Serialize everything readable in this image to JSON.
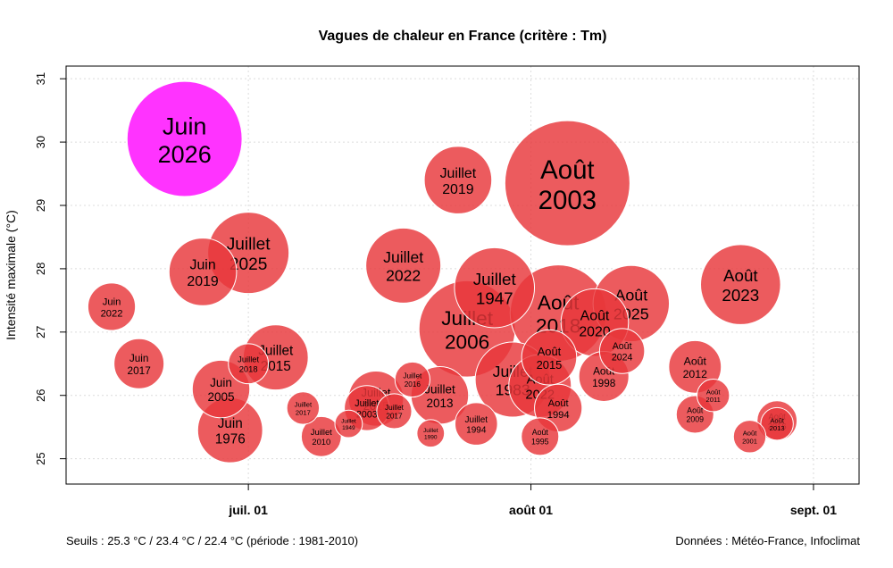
{
  "chart_data": {
    "type": "scatter",
    "title": "Vagues de chaleur en France (critère : Tm)",
    "xlabel": "",
    "ylabel": "Intensité maximale (°C)",
    "xlim": [
      "2026-06-11",
      "2026-09-06"
    ],
    "ylim": [
      24.6,
      31.2
    ],
    "x_ticks": [
      {
        "date": "2026-07-01",
        "label": "juil. 01"
      },
      {
        "date": "2026-08-01",
        "label": "août 01"
      },
      {
        "date": "2026-09-01",
        "label": "sept. 01"
      }
    ],
    "y_ticks": [
      25,
      26,
      27,
      28,
      29,
      30,
      31
    ],
    "grid": true,
    "size_meaning": "relative heat-wave severity (bubble area)",
    "colors": {
      "historical": "#e8373b",
      "current": "#ff33ff",
      "stroke": "#ffffff"
    },
    "points": [
      {
        "month": "Juin",
        "year": "2026",
        "date": "2026-06-24",
        "y": 30.05,
        "size": 4.6,
        "highlight": true
      },
      {
        "month": "Août",
        "year": "2003",
        "date": "2026-08-05",
        "y": 29.35,
        "size": 5.0
      },
      {
        "month": "Juillet",
        "year": "2019",
        "date": "2026-07-24",
        "y": 29.4,
        "size": 2.7
      },
      {
        "month": "Juillet",
        "year": "2025",
        "date": "2026-07-01",
        "y": 28.25,
        "size": 3.25
      },
      {
        "month": "Juin",
        "year": "2019",
        "date": "2026-06-26",
        "y": 27.95,
        "size": 2.7
      },
      {
        "month": "Juillet",
        "year": "2022",
        "date": "2026-07-18",
        "y": 28.05,
        "size": 3.0
      },
      {
        "month": "Juillet",
        "year": "1947",
        "date": "2026-07-28",
        "y": 27.7,
        "size": 3.2
      },
      {
        "month": "Août",
        "year": "2023",
        "date": "2026-08-24",
        "y": 27.75,
        "size": 3.2
      },
      {
        "month": "Juin",
        "year": "2022",
        "date": "2026-06-16",
        "y": 27.4,
        "size": 1.9
      },
      {
        "month": "Juillet",
        "year": "2006",
        "date": "2026-07-25",
        "y": 27.05,
        "size": 3.85
      },
      {
        "month": "Août",
        "year": "2018",
        "date": "2026-08-04",
        "y": 27.3,
        "size": 3.85
      },
      {
        "month": "Août",
        "year": "2020",
        "date": "2026-08-08",
        "y": 27.15,
        "size": 2.7
      },
      {
        "month": "Août",
        "year": "2025",
        "date": "2026-08-12",
        "y": 27.45,
        "size": 3.05
      },
      {
        "month": "Août",
        "year": "2015",
        "date": "2026-08-03",
        "y": 26.6,
        "size": 2.2
      },
      {
        "month": "Août",
        "year": "2024",
        "date": "2026-08-11",
        "y": 26.7,
        "size": 1.8
      },
      {
        "month": "Juin",
        "year": "2017",
        "date": "2026-06-19",
        "y": 26.5,
        "size": 2.0
      },
      {
        "month": "Juillet",
        "year": "2015",
        "date": "2026-07-04",
        "y": 26.6,
        "size": 2.6
      },
      {
        "month": "Juillet",
        "year": "2018",
        "date": "2026-07-01",
        "y": 26.5,
        "size": 1.6
      },
      {
        "month": "Août",
        "year": "1998",
        "date": "2026-08-09",
        "y": 26.3,
        "size": 2.0
      },
      {
        "month": "Août",
        "year": "2012",
        "date": "2026-08-19",
        "y": 26.45,
        "size": 2.1
      },
      {
        "month": "Juillet",
        "year": "1983",
        "date": "2026-07-30",
        "y": 26.25,
        "size": 3.0
      },
      {
        "month": "Août",
        "year": "2022",
        "date": "2026-08-02",
        "y": 26.15,
        "size": 2.5
      },
      {
        "month": "Juin",
        "year": "2005",
        "date": "2026-06-28",
        "y": 26.1,
        "size": 2.3
      },
      {
        "month": "Juin",
        "year": "1976",
        "date": "2026-06-29",
        "y": 25.45,
        "size": 2.6
      },
      {
        "month": "Juillet",
        "year": "2013",
        "date": "2026-07-22",
        "y": 26.0,
        "size": 2.3
      },
      {
        "month": "Juillet",
        "year": "2016",
        "date": "2026-07-19",
        "y": 26.25,
        "size": 1.4
      },
      {
        "month": "Juillet",
        "year": "2015",
        "date": "2026-07-15",
        "y": 25.95,
        "size": 2.2
      },
      {
        "month": "Juillet",
        "year": "2003",
        "date": "2026-07-14",
        "y": 25.8,
        "size": 1.8
      },
      {
        "month": "Juillet",
        "year": "2017",
        "date": "2026-07-17",
        "y": 25.75,
        "size": 1.4
      },
      {
        "month": "Juillet",
        "year": "2017",
        "date": "2026-07-07",
        "y": 25.8,
        "size": 1.3
      },
      {
        "month": "Août",
        "year": "1994",
        "date": "2026-08-04",
        "y": 25.8,
        "size": 1.9
      },
      {
        "month": "Août",
        "year": "2011",
        "date": "2026-08-21",
        "y": 26.0,
        "size": 1.3
      },
      {
        "month": "Juillet",
        "year": "1994",
        "date": "2026-07-26",
        "y": 25.55,
        "size": 1.7
      },
      {
        "month": "Août",
        "year": "2009",
        "date": "2026-08-19",
        "y": 25.7,
        "size": 1.5
      },
      {
        "month": "Août",
        "year": "2016",
        "date": "2026-08-28",
        "y": 25.6,
        "size": 1.6
      },
      {
        "month": "Août",
        "year": "2013",
        "date": "2026-08-28",
        "y": 25.55,
        "size": 1.3
      },
      {
        "month": "Juillet",
        "year": "1949",
        "date": "2026-07-12",
        "y": 25.55,
        "size": 1.1
      },
      {
        "month": "Juillet",
        "year": "1990",
        "date": "2026-07-21",
        "y": 25.4,
        "size": 1.1
      },
      {
        "month": "Juillet",
        "year": "2010",
        "date": "2026-07-09",
        "y": 25.35,
        "size": 1.6
      },
      {
        "month": "Août",
        "year": "1995",
        "date": "2026-08-02",
        "y": 25.35,
        "size": 1.5
      },
      {
        "month": "Août",
        "year": "2001",
        "date": "2026-08-25",
        "y": 25.35,
        "size": 1.3
      }
    ]
  },
  "footer": {
    "thresholds": "Seuils : 25.3 °C / 23.4 °C / 22.4 °C (période : 1981-2010)",
    "source": "Données : Météo-France, Infoclimat"
  }
}
